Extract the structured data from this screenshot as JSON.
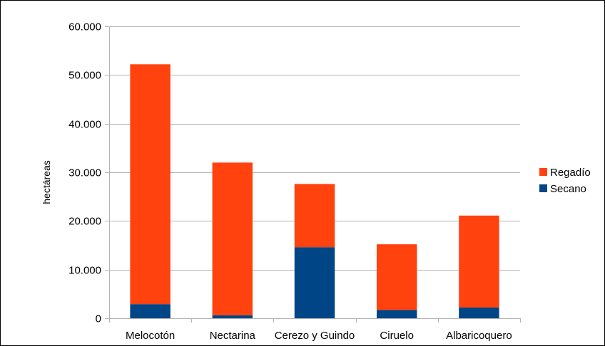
{
  "chart_data": {
    "type": "bar",
    "stacked": true,
    "categories": [
      "Melocotón",
      "Nectarina",
      "Cerezo y Guindo",
      "Ciruelo",
      "Albaricoquero"
    ],
    "series": [
      {
        "name": "Secano",
        "values": [
          2900,
          600,
          14600,
          1700,
          2200
        ],
        "color": "#004586"
      },
      {
        "name": "Regadío",
        "values": [
          49300,
          31400,
          13000,
          13500,
          18900
        ],
        "color": "#ff420e"
      }
    ],
    "ylabel": "hectáreas",
    "xlabel": "",
    "ylim": [
      0,
      60000
    ],
    "yticks": [
      0,
      10000,
      20000,
      30000,
      40000,
      50000,
      60000
    ],
    "ytick_labels": [
      "0",
      "10.000",
      "20.000",
      "30.000",
      "40.000",
      "50.000",
      "60.000"
    ],
    "grid": true,
    "legend_position": "right",
    "legend_order": [
      "Regadío",
      "Secano"
    ]
  }
}
